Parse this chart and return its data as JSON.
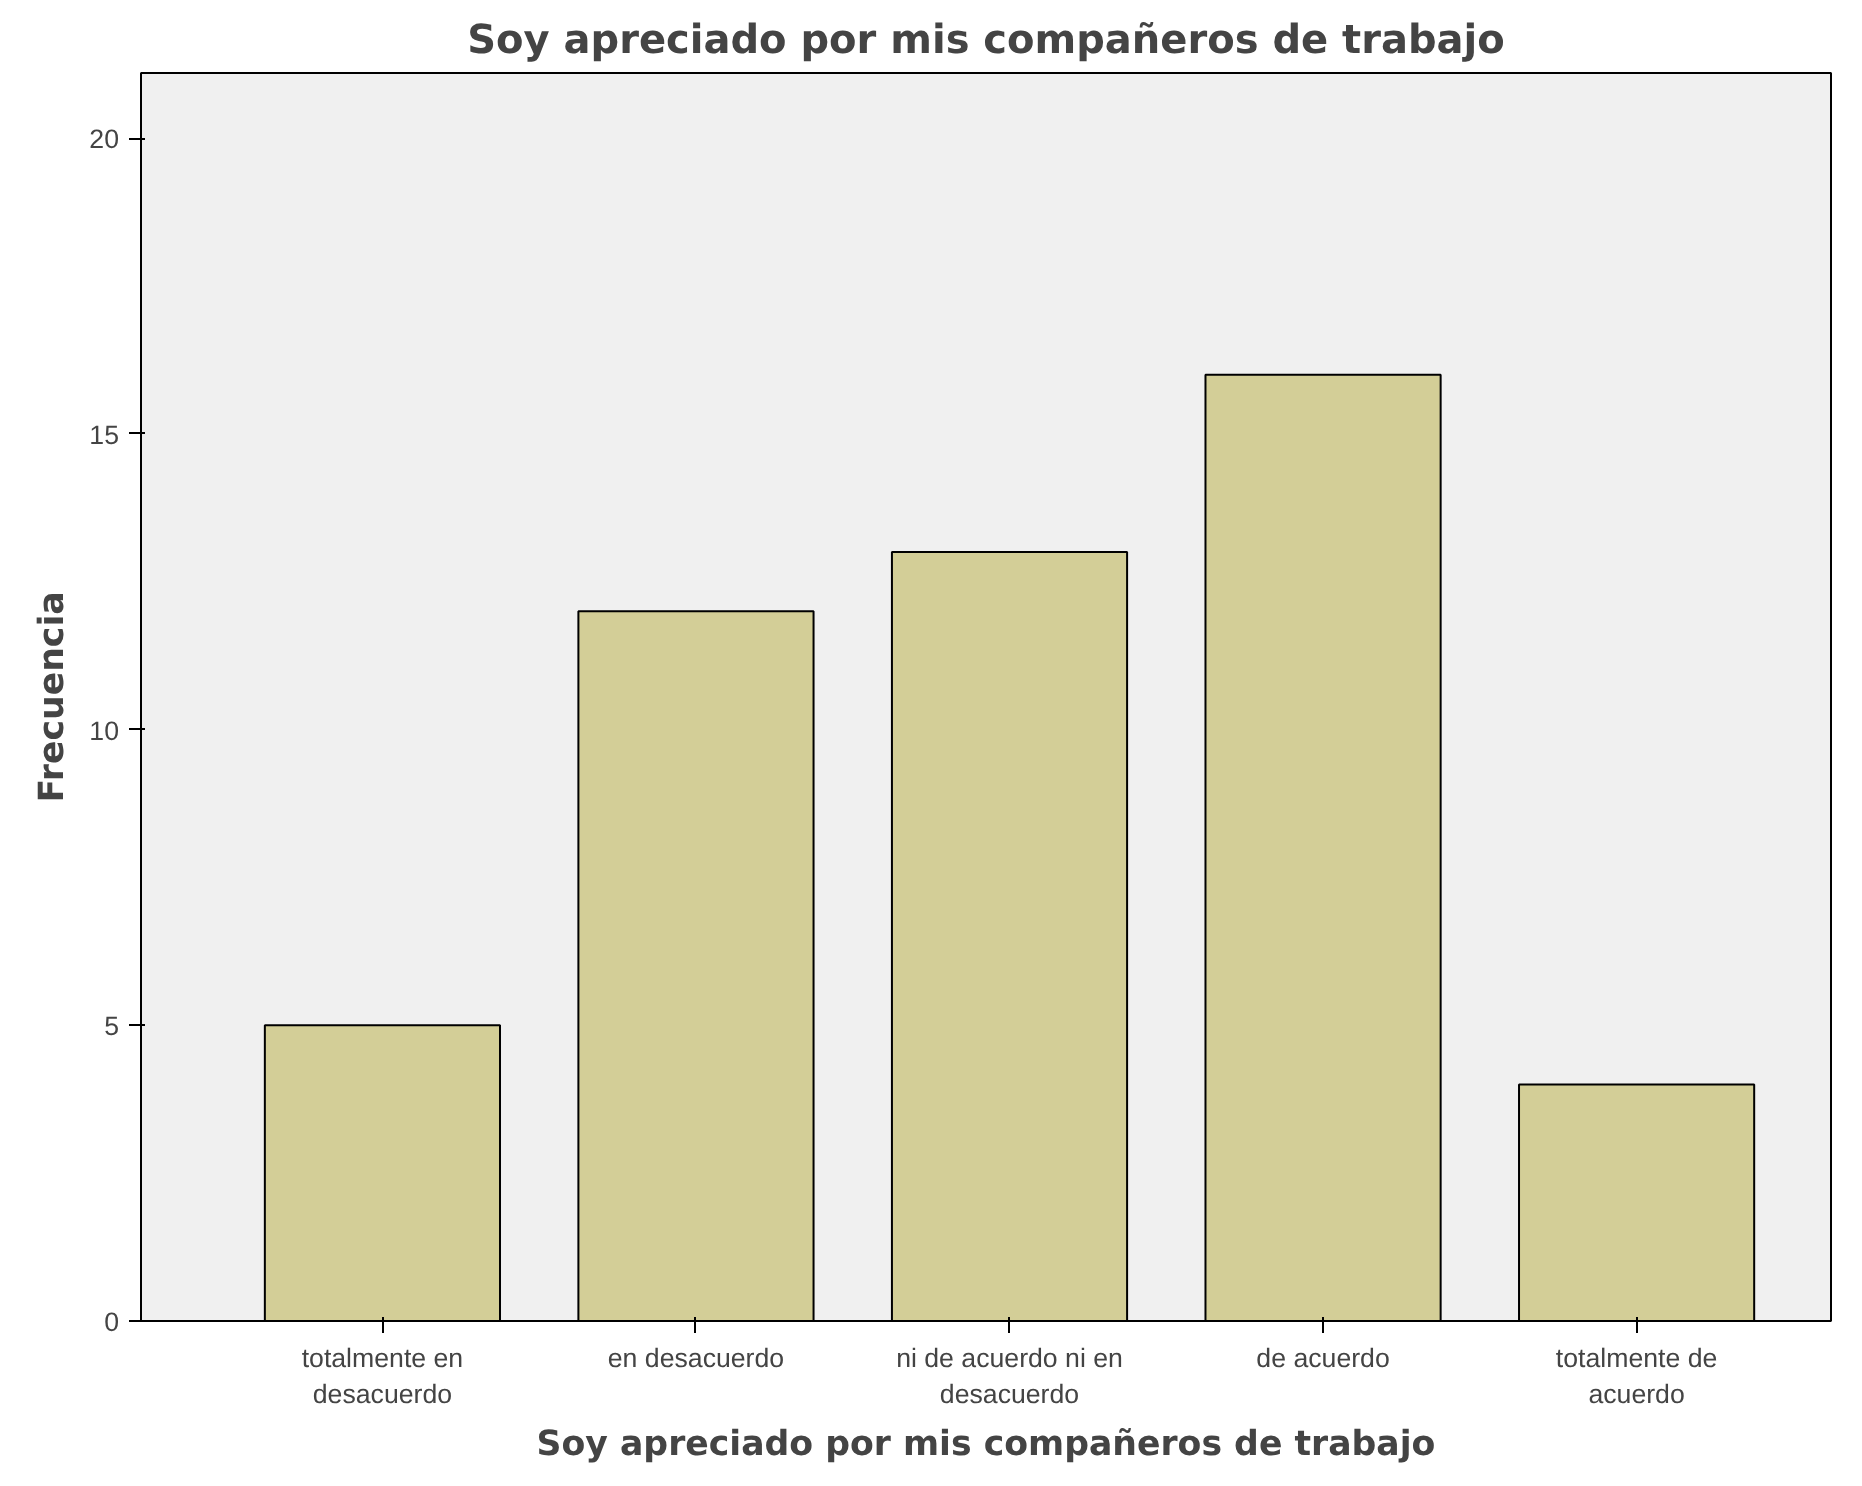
{
  "chart_data": {
    "type": "bar",
    "title": "Soy apreciado por mis compañeros de trabajo",
    "xlabel": "Soy apreciado por mis compañeros de trabajo",
    "ylabel": "Frecuencia",
    "categories": [
      "totalmente en desacuerdo",
      "en desacuerdo",
      "ni de acuerdo ni en desacuerdo",
      "de acuerdo",
      "totalmente de acuerdo"
    ],
    "values": [
      5,
      12,
      13,
      16,
      4
    ],
    "color": "#d3ce97",
    "ylim": [
      0,
      21.1
    ],
    "yticks": [
      0,
      5,
      10,
      15,
      20
    ],
    "grid": false
  }
}
